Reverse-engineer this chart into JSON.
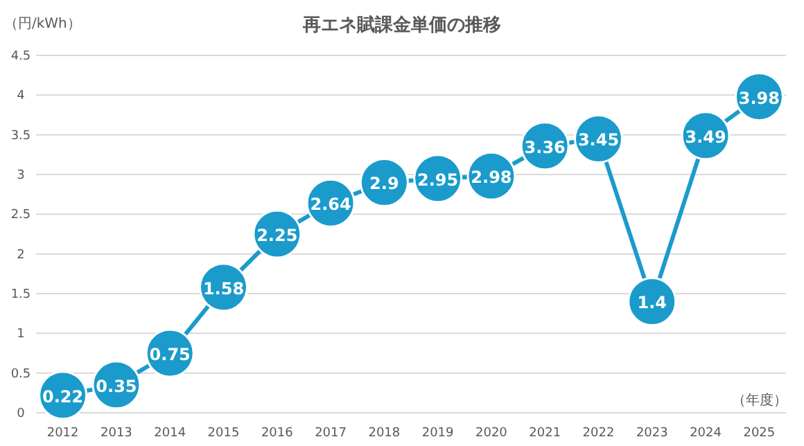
{
  "chart_data": {
    "type": "line",
    "title": "再エネ賦課金単価の推移",
    "xlabel": "（年度）",
    "ylabel": "（円/kWh）",
    "categories": [
      "2012",
      "2013",
      "2014",
      "2015",
      "2016",
      "2017",
      "2018",
      "2019",
      "2020",
      "2021",
      "2022",
      "2023",
      "2024",
      "2025"
    ],
    "series": [
      {
        "color": "#1a9bcb",
        "values": [
          0.22,
          0.35,
          0.75,
          1.58,
          2.25,
          2.64,
          2.9,
          2.95,
          2.98,
          3.36,
          3.45,
          1.4,
          3.49,
          3.98
        ]
      }
    ],
    "ylim": [
      0,
      4.5
    ],
    "yticks": [
      0,
      0.5,
      1,
      1.5,
      2,
      2.5,
      3,
      3.5,
      4,
      4.5
    ],
    "grid": "y",
    "marker": "circle",
    "data_labels": true
  }
}
